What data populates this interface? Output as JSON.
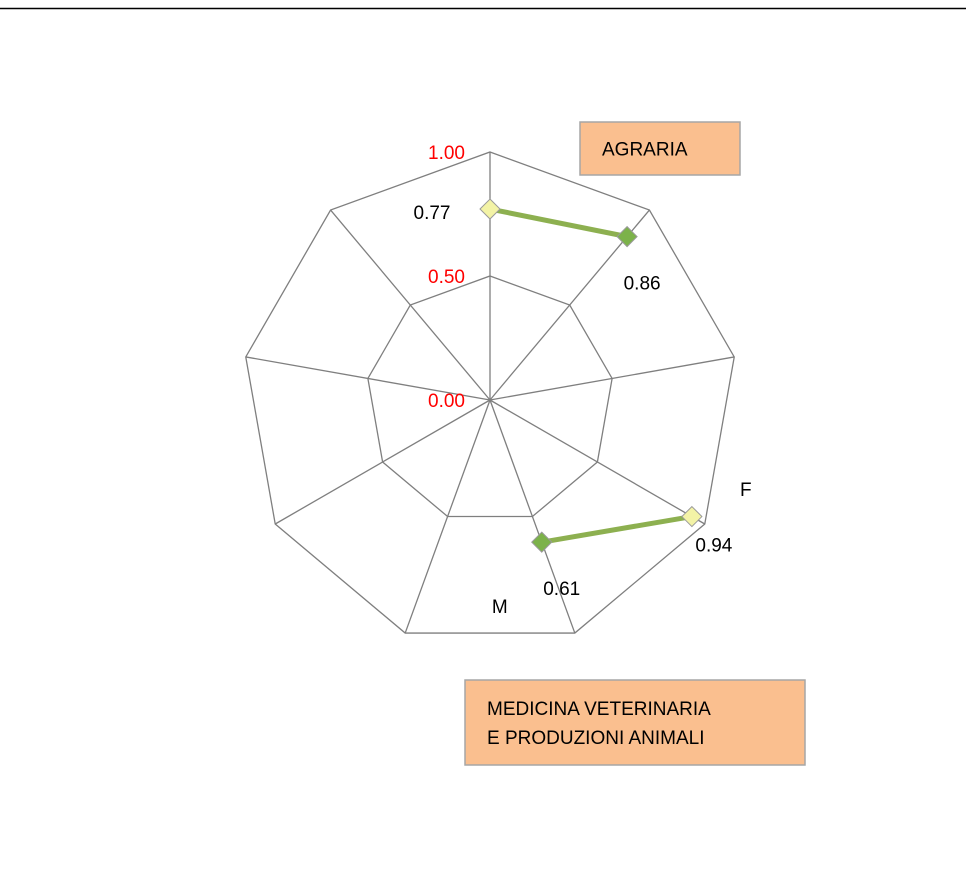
{
  "chart_data": {
    "type": "radar",
    "categories": [
      null,
      null,
      null,
      "F",
      "M",
      null,
      null,
      null,
      null
    ],
    "series": [
      {
        "values": [
          0.77,
          0.86,
          null,
          0.94,
          0.61,
          null,
          null,
          null,
          null
        ],
        "color": "#8db050",
        "marker_colors": [
          "#f3f3a6",
          "#7cb24a",
          null,
          "#f3f3a6",
          "#7cb24a",
          null,
          null,
          null,
          null
        ]
      }
    ],
    "ylim": [
      0,
      1
    ],
    "yticks": [
      {
        "value": 0,
        "label": "0.00"
      },
      {
        "value": 0.5,
        "label": "0.50"
      },
      {
        "value": 1,
        "label": "1.00"
      }
    ],
    "tick_color": "#ff0000",
    "grid": true,
    "annotations": [
      [
        "AGRARIA"
      ],
      [
        "MEDICINA VETERINARIA",
        "E PRODUZIONI ANIMALI"
      ]
    ]
  }
}
